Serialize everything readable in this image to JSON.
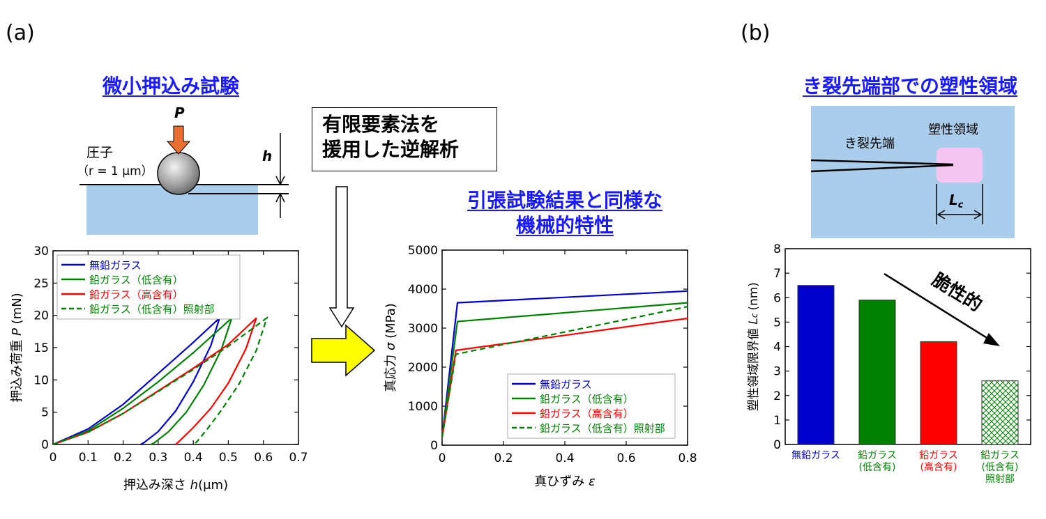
{
  "panel_labels": {
    "a": "(a)",
    "b": "(b)"
  },
  "titles": {
    "indentation_test": "微小押込み試験",
    "mechanical_props": [
      "引張試験結果と同様な",
      "機械的特性"
    ],
    "plastic_zone": "き裂先端部での塑性領域"
  },
  "fem_box": [
    "有限要素法を",
    "援用した逆解析"
  ],
  "indenter_diagram": {
    "load_label": "P",
    "indenter_label": "圧子",
    "radius_label": "（r = 1 μm）",
    "depth_label": "h"
  },
  "crack_diagram": {
    "crack_tip_label": "き裂先端",
    "plastic_zone_label": "塑性領域",
    "length_label": "Lc"
  },
  "colors": {
    "lead_free": "#0000cc",
    "low_lead": "#008000",
    "high_lead": "#ff0000",
    "title_blue": "#1a1aff",
    "diagram_blue": "#a9cdea",
    "plastic_zone": "#f6c6f2",
    "arrow_yellow": "#ffff00",
    "load_arrow": "#e96f30"
  },
  "chart_data": [
    {
      "type": "line",
      "xlabel_prefix": "押込み深さ",
      "xlabel_var": "h",
      "xlabel_unit": "(μm)",
      "ylabel_prefix": "押込み荷重",
      "ylabel_var": "P",
      "ylabel_unit": "(mN)",
      "xlim": [
        0,
        0.7
      ],
      "ylim": [
        0,
        30
      ],
      "xticks": [
        "0",
        "0.1",
        "0.2",
        "0.3",
        "0.4",
        "0.5",
        "0.6",
        "0.7"
      ],
      "yticks": [
        "0",
        "5",
        "10",
        "15",
        "20",
        "25",
        "30"
      ],
      "legend": "top-left",
      "series": [
        {
          "name": "無鉛ガラス",
          "color": "#0000cc",
          "dash": false,
          "loading": [
            [
              0,
              0
            ],
            [
              0.1,
              2.4
            ],
            [
              0.2,
              6.2
            ],
            [
              0.3,
              11.0
            ],
            [
              0.4,
              15.8
            ],
            [
              0.475,
              19.6
            ]
          ],
          "unloading": [
            [
              0.475,
              19.6
            ],
            [
              0.45,
              15.3
            ],
            [
              0.4,
              9.7
            ],
            [
              0.35,
              5.2
            ],
            [
              0.3,
              2.0
            ],
            [
              0.26,
              0.3
            ],
            [
              0.25,
              0
            ]
          ]
        },
        {
          "name": "鉛ガラス（低含有）",
          "color": "#008000",
          "dash": false,
          "loading": [
            [
              0,
              0
            ],
            [
              0.1,
              2.1
            ],
            [
              0.2,
              5.6
            ],
            [
              0.3,
              9.7
            ],
            [
              0.4,
              14.2
            ],
            [
              0.51,
              19.6
            ]
          ],
          "unloading": [
            [
              0.51,
              19.6
            ],
            [
              0.48,
              14.7
            ],
            [
              0.43,
              9.2
            ],
            [
              0.38,
              5.0
            ],
            [
              0.33,
              2.0
            ],
            [
              0.29,
              0.3
            ],
            [
              0.28,
              0
            ]
          ]
        },
        {
          "name": "鉛ガラス（高含有）",
          "color": "#ff0000",
          "dash": false,
          "loading": [
            [
              0,
              0
            ],
            [
              0.1,
              1.9
            ],
            [
              0.2,
              4.8
            ],
            [
              0.3,
              8.3
            ],
            [
              0.4,
              11.8
            ],
            [
              0.5,
              15.5
            ],
            [
              0.58,
              19.6
            ]
          ],
          "unloading": [
            [
              0.58,
              19.6
            ],
            [
              0.55,
              14.8
            ],
            [
              0.5,
              9.5
            ],
            [
              0.45,
              5.6
            ],
            [
              0.4,
              2.6
            ],
            [
              0.36,
              0.5
            ],
            [
              0.35,
              0
            ]
          ]
        },
        {
          "name": "鉛ガラス（低含有）照射部",
          "color": "#008000",
          "dash": true,
          "loading": [
            [
              0,
              0
            ],
            [
              0.1,
              1.9
            ],
            [
              0.2,
              4.8
            ],
            [
              0.3,
              8.2
            ],
            [
              0.4,
              11.6
            ],
            [
              0.5,
              15.2
            ],
            [
              0.61,
              19.6
            ]
          ],
          "unloading": [
            [
              0.61,
              19.6
            ],
            [
              0.58,
              14.6
            ],
            [
              0.53,
              9.3
            ],
            [
              0.48,
              5.3
            ],
            [
              0.44,
              2.4
            ],
            [
              0.41,
              0.4
            ],
            [
              0.4,
              0
            ]
          ]
        }
      ]
    },
    {
      "type": "line",
      "xlabel_prefix": "真ひずみ",
      "xlabel_var": "ε",
      "ylabel_prefix": "真応力",
      "ylabel_var": "σ",
      "ylabel_unit": "(MPa)",
      "xlim": [
        0,
        0.8
      ],
      "ylim": [
        0,
        5000
      ],
      "xticks": [
        "0",
        "0.2",
        "0.4",
        "0.6",
        "0.8"
      ],
      "yticks": [
        "0",
        "1000",
        "2000",
        "3000",
        "4000",
        "5000"
      ],
      "legend": "bottom-right",
      "series": [
        {
          "name": "無鉛ガラス",
          "color": "#0000cc",
          "dash": false,
          "points": [
            [
              0,
              200
            ],
            [
              0.05,
              3650
            ],
            [
              0.8,
              3950
            ]
          ]
        },
        {
          "name": "鉛ガラス（低含有）",
          "color": "#008000",
          "dash": false,
          "points": [
            [
              0,
              200
            ],
            [
              0.05,
              3170
            ],
            [
              0.8,
              3650
            ]
          ]
        },
        {
          "name": "鉛ガラス（高含有）",
          "color": "#ff0000",
          "dash": false,
          "points": [
            [
              0,
              200
            ],
            [
              0.045,
              2430
            ],
            [
              0.8,
              3250
            ]
          ]
        },
        {
          "name": "鉛ガラス（低含有）照射部",
          "color": "#008000",
          "dash": true,
          "points": [
            [
              0,
              200
            ],
            [
              0.045,
              2330
            ],
            [
              0.4,
              2900
            ],
            [
              0.8,
              3550
            ]
          ]
        }
      ]
    },
    {
      "type": "bar",
      "ylabel_prefix": "塑性領域限界値",
      "ylabel_var": "Lc",
      "ylabel_unit": "(nm)",
      "ylim": [
        0,
        8
      ],
      "yticks": [
        "0",
        "1",
        "2",
        "3",
        "4",
        "5",
        "6",
        "7",
        "8"
      ],
      "categories": [
        [
          "無鉛ガラス"
        ],
        [
          "鉛ガラス",
          "(低含有)"
        ],
        [
          "鉛ガラス",
          "(高含有)"
        ],
        [
          "鉛ガラス",
          "(低含有)",
          "照射部"
        ]
      ],
      "values": [
        6.5,
        5.9,
        4.2,
        2.6
      ],
      "bar_colors": [
        "#0000cc",
        "#008000",
        "#ff0000",
        "#008000"
      ],
      "hatched": [
        false,
        false,
        false,
        true
      ],
      "annotation": "脆性的"
    }
  ]
}
